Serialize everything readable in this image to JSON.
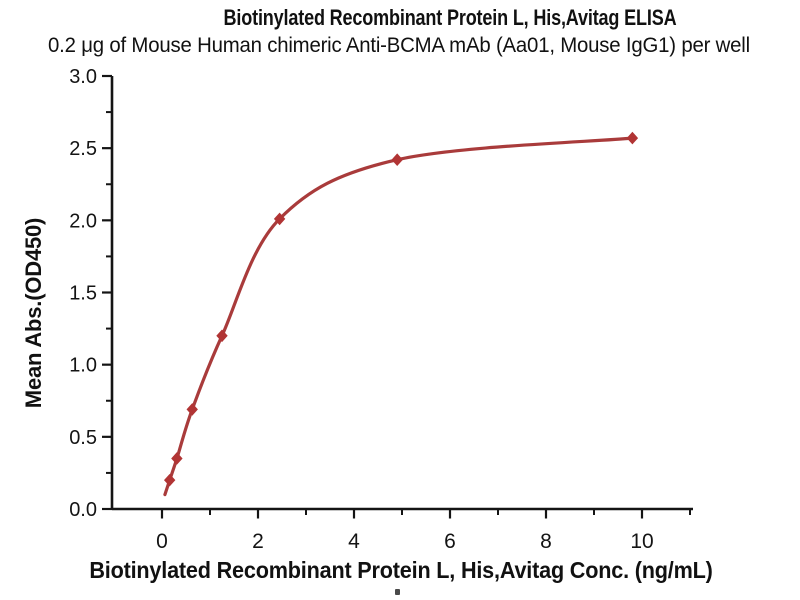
{
  "chart_data": {
    "type": "scatter",
    "title": "Biotinylated Recombinant Protein L, His,Avitag ELISA",
    "subtitle": "0.2 μg of Mouse Human chimeric Anti-BCMA mAb (Aa01, Mouse IgG1) per well",
    "xlabel": "Biotinylated Recombinant Protein L, His,Avitag Conc. (ng/mL)",
    "ylabel": "Mean Abs.(OD450)",
    "x": [
      0.16,
      0.31,
      0.63,
      1.25,
      2.45,
      4.9,
      9.8
    ],
    "y": [
      0.2,
      0.35,
      0.69,
      1.2,
      2.01,
      2.42,
      2.57
    ],
    "xlim": [
      -1.05,
      11.05
    ],
    "ylim": [
      0,
      3.0
    ],
    "x_ticks": {
      "major": [
        0,
        2,
        4,
        6,
        8,
        10
      ],
      "major_labels": [
        "0",
        "2",
        "4",
        "6",
        "8",
        "10"
      ],
      "minor": [
        1,
        3,
        5,
        7,
        9,
        11
      ]
    },
    "y_ticks": {
      "major": [
        0,
        0.5,
        1.0,
        1.5,
        2.0,
        2.5,
        3.0
      ],
      "major_labels": [
        "0.0",
        "0.5",
        "1.0",
        "1.5",
        "2.0",
        "2.5",
        "3.0"
      ],
      "minor": [
        0.25,
        0.75,
        1.25,
        1.75,
        2.25,
        2.75
      ]
    },
    "curve_anchors": [
      [
        0.06,
        0.1
      ],
      [
        0.16,
        0.2
      ],
      [
        0.31,
        0.35
      ],
      [
        0.63,
        0.69
      ],
      [
        1.25,
        1.2
      ],
      [
        2.45,
        2.01
      ],
      [
        4.9,
        2.42
      ],
      [
        9.8,
        2.57
      ]
    ],
    "marker": "diamond",
    "grid": false,
    "legend": null,
    "colors": {
      "curve": "#a93b3b",
      "marker": "#b13434",
      "axis": "#141414",
      "text": "#141414"
    }
  }
}
